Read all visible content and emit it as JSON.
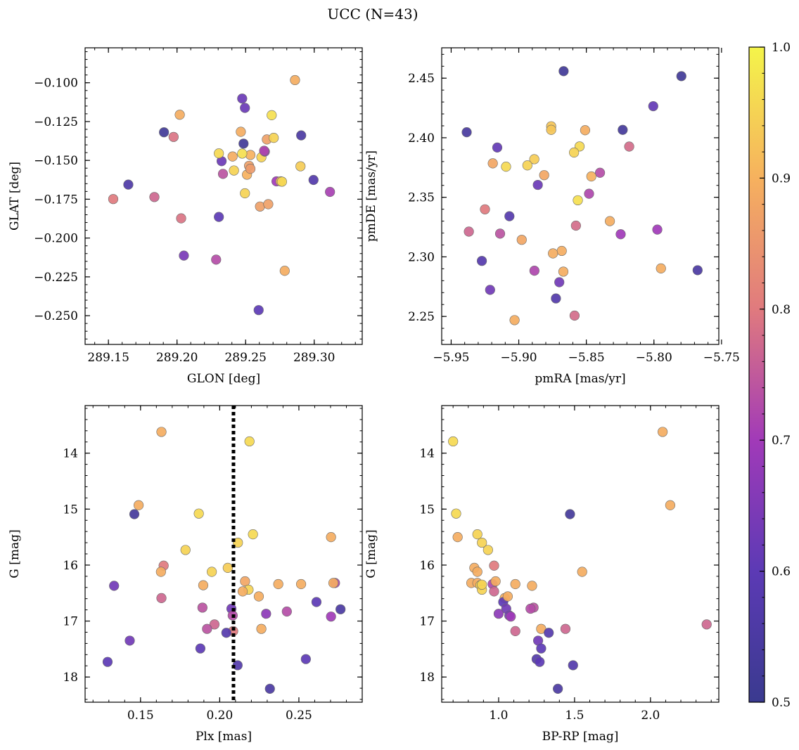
{
  "figure": {
    "title": "UCC (N=43)"
  },
  "colorbar": {
    "cmap": "plasma",
    "range": [
      0.5,
      1.0
    ],
    "ticks": [
      0.5,
      0.6,
      0.7,
      0.8,
      0.9,
      1.0
    ],
    "tick_labels": [
      "0.5",
      "0.6",
      "0.7",
      "0.8",
      "0.9",
      "1.0"
    ]
  },
  "chart_data": [
    {
      "type": "scatter",
      "id": "glon_glat",
      "xlabel": "GLON [deg]",
      "ylabel": "GLAT [deg]",
      "xlim": [
        289.133,
        289.335
      ],
      "ylim": [
        -0.2685,
        -0.0775
      ],
      "invert_y": false,
      "xticks": [
        289.15,
        289.2,
        289.25,
        289.3
      ],
      "xtick_labels": [
        "289.15",
        "289.20",
        "289.25",
        "289.30"
      ],
      "yticks": [
        -0.1,
        -0.125,
        -0.15,
        -0.175,
        -0.2,
        -0.225,
        -0.25
      ],
      "ytick_labels": [
        "−0.100",
        "−0.125",
        "−0.150",
        "−0.175",
        "−0.200",
        "−0.225",
        "−0.250"
      ],
      "x": [
        289.286,
        289.2475,
        289.2495,
        289.202,
        289.269,
        289.1905,
        289.1975,
        289.2465,
        289.2655,
        289.2705,
        289.2905,
        289.2485,
        289.2405,
        289.2535,
        289.2615,
        289.264,
        289.2325,
        289.2305,
        289.2525,
        289.2415,
        289.2335,
        289.251,
        289.2725,
        289.2755,
        289.2995,
        289.1645,
        289.3115,
        289.1835,
        289.1535,
        289.2495,
        289.2605,
        289.2665,
        289.203,
        289.2305,
        289.205,
        289.2285,
        289.2785,
        289.2595,
        289.2765,
        289.2475,
        289.2635,
        289.2535,
        289.29
      ],
      "y": [
        -0.0983,
        -0.1102,
        -0.1162,
        -0.1206,
        -0.1209,
        -0.1319,
        -0.1349,
        -0.1316,
        -0.1365,
        -0.1355,
        -0.1339,
        -0.1392,
        -0.1475,
        -0.1465,
        -0.148,
        -0.1443,
        -0.1505,
        -0.1455,
        -0.1535,
        -0.1565,
        -0.1587,
        -0.1592,
        -0.1635,
        -0.1635,
        -0.1626,
        -0.1656,
        -0.1703,
        -0.1736,
        -0.1749,
        -0.1712,
        -0.1797,
        -0.1782,
        -0.1873,
        -0.1864,
        -0.2113,
        -0.2139,
        -0.2211,
        -0.2464,
        -0.1637,
        -0.1456,
        -0.1438,
        -0.1554,
        -0.1538
      ],
      "c": [
        0.89,
        0.62,
        0.62,
        0.89,
        0.97,
        0.52,
        0.79,
        0.89,
        0.87,
        0.95,
        0.55,
        0.52,
        0.89,
        0.9,
        0.95,
        0.67,
        0.62,
        0.96,
        0.87,
        0.95,
        0.74,
        0.9,
        0.7,
        0.92,
        0.57,
        0.56,
        0.71,
        0.77,
        0.8,
        0.95,
        0.87,
        0.87,
        0.79,
        0.6,
        0.64,
        0.73,
        0.89,
        0.6,
        0.96,
        0.97,
        0.72,
        0.86,
        0.94
      ]
    },
    {
      "type": "scatter",
      "id": "pm",
      "xlabel": "pmRA [mas/yr]",
      "ylabel": "pmDE [mas/yr]",
      "xlim": [
        -5.957,
        -5.752
      ],
      "ylim": [
        2.2265,
        2.4755
      ],
      "invert_y": false,
      "xticks": [
        -5.95,
        -5.9,
        -5.85,
        -5.8,
        -5.75
      ],
      "xtick_labels": [
        "−5.95",
        "−5.90",
        "−5.85",
        "−5.80",
        "−5.75"
      ],
      "yticks": [
        2.25,
        2.3,
        2.35,
        2.4,
        2.45
      ],
      "ytick_labels": [
        "2.25",
        "2.30",
        "2.35",
        "2.40",
        "2.45"
      ],
      "x": [
        -5.8668,
        -5.7797,
        -5.8005,
        -5.8231,
        -5.9385,
        -5.876,
        -5.876,
        -5.8509,
        -5.855,
        -5.8183,
        -5.9159,
        -5.8591,
        -5.8885,
        -5.8936,
        -5.9192,
        -5.9094,
        -5.8399,
        -5.8812,
        -5.8463,
        -5.8859,
        -5.8563,
        -5.9069,
        -5.925,
        -5.8326,
        -5.9369,
        -5.9138,
        -5.8577,
        -5.7975,
        -5.8246,
        -5.8682,
        -5.8747,
        -5.8978,
        -5.9273,
        -5.7948,
        -5.867,
        -5.8884,
        -5.7677,
        -5.9212,
        -5.87,
        -5.8725,
        -5.9031,
        -5.8587,
        -5.848
      ],
      "y": [
        2.4559,
        2.4517,
        2.4265,
        2.4066,
        2.4046,
        2.4096,
        2.4066,
        2.4063,
        2.3927,
        2.3926,
        2.3918,
        2.3876,
        2.382,
        2.3768,
        2.3785,
        2.3757,
        2.3706,
        2.3686,
        2.3675,
        2.3604,
        2.3475,
        2.3341,
        2.3399,
        2.33,
        2.3212,
        2.3195,
        2.3262,
        2.3229,
        2.319,
        2.305,
        2.3029,
        2.3143,
        2.2966,
        2.2903,
        2.2876,
        2.2884,
        2.2888,
        2.2723,
        2.2787,
        2.2651,
        2.2469,
        2.2507,
        2.353
      ],
      "c": [
        0.52,
        0.52,
        0.61,
        0.53,
        0.54,
        0.93,
        0.93,
        0.89,
        0.96,
        0.78,
        0.61,
        0.95,
        0.94,
        0.95,
        0.88,
        0.96,
        0.73,
        0.88,
        0.9,
        0.62,
        0.97,
        0.58,
        0.8,
        0.89,
        0.77,
        0.74,
        0.78,
        0.7,
        0.7,
        0.89,
        0.89,
        0.88,
        0.58,
        0.89,
        0.89,
        0.72,
        0.55,
        0.63,
        0.63,
        0.57,
        0.89,
        0.78,
        0.72
      ]
    },
    {
      "type": "scatter",
      "id": "plx_g",
      "xlabel": "Plx [mas]",
      "ylabel": "G [mag]",
      "xlim": [
        0.115,
        0.29
      ],
      "ylim": [
        18.45,
        13.15
      ],
      "invert_y": true,
      "vline": {
        "x": 0.2087,
        "style": "dotted"
      },
      "xticks": [
        0.15,
        0.2,
        0.25
      ],
      "xtick_labels": [
        "0.15",
        "0.20",
        "0.25"
      ],
      "yticks": [
        14,
        15,
        16,
        17,
        18
      ],
      "ytick_labels": [
        "14",
        "15",
        "16",
        "17",
        "18"
      ],
      "x": [
        0.1632,
        0.2188,
        0.1488,
        0.1461,
        0.1868,
        0.221,
        0.2115,
        0.2703,
        0.1784,
        0.1646,
        0.1629,
        0.2051,
        0.195,
        0.216,
        0.2182,
        0.2728,
        0.2718,
        0.2514,
        0.237,
        0.1896,
        0.2145,
        0.2247,
        0.1333,
        0.1632,
        0.2611,
        0.1891,
        0.2074,
        0.2424,
        0.2293,
        0.2763,
        0.2703,
        0.1967,
        0.192,
        0.2263,
        0.2085,
        0.2042,
        0.2082,
        0.1432,
        0.1878,
        0.2113,
        0.1292,
        0.2544,
        0.2317
      ],
      "y": [
        13.62,
        13.79,
        14.93,
        15.09,
        15.08,
        15.45,
        15.6,
        15.5,
        15.73,
        16.01,
        16.12,
        16.05,
        16.12,
        16.29,
        16.44,
        16.32,
        16.32,
        16.34,
        16.34,
        16.36,
        16.47,
        16.56,
        16.37,
        16.59,
        16.66,
        16.76,
        16.78,
        16.83,
        16.87,
        16.79,
        16.92,
        17.06,
        17.14,
        17.14,
        17.18,
        17.21,
        16.9,
        17.35,
        17.49,
        17.79,
        17.73,
        17.68,
        18.21
      ],
      "c": [
        0.89,
        0.96,
        0.89,
        0.53,
        0.96,
        0.96,
        0.95,
        0.89,
        0.95,
        0.8,
        0.89,
        0.94,
        0.95,
        0.88,
        0.95,
        0.72,
        0.89,
        0.89,
        0.89,
        0.89,
        0.89,
        0.89,
        0.63,
        0.77,
        0.6,
        0.74,
        0.63,
        0.73,
        0.67,
        0.55,
        0.7,
        0.77,
        0.74,
        0.89,
        0.8,
        0.58,
        0.73,
        0.63,
        0.6,
        0.57,
        0.6,
        0.6,
        0.55
      ]
    },
    {
      "type": "scatter",
      "id": "bprp_g",
      "xlabel": "BP-RP [mag]",
      "ylabel": "G [mag]",
      "xlim": [
        0.625,
        2.45
      ],
      "ylim": [
        18.45,
        13.15
      ],
      "invert_y": true,
      "xticks": [
        1.0,
        1.5,
        2.0
      ],
      "xtick_labels": [
        "1.0",
        "1.5",
        "2.0"
      ],
      "yticks": [
        14,
        15,
        16,
        17,
        18
      ],
      "ytick_labels": [
        "14",
        "15",
        "16",
        "17",
        "18"
      ],
      "x": [
        0.7,
        2.08,
        2.13,
        0.72,
        0.73,
        1.47,
        0.86,
        0.89,
        0.93,
        0.97,
        1.55,
        0.84,
        0.86,
        0.82,
        0.86,
        0.88,
        0.89,
        0.96,
        0.98,
        1.11,
        1.22,
        0.97,
        0.89,
        1.04,
        1.03,
        1.06,
        1.23,
        1.05,
        1.21,
        1.0,
        1.07,
        1.08,
        1.28,
        1.44,
        2.37,
        1.11,
        1.33,
        1.26,
        1.28,
        1.25,
        1.27,
        1.49,
        1.39
      ],
      "y": [
        13.79,
        13.62,
        14.93,
        15.08,
        15.5,
        15.09,
        15.45,
        15.6,
        15.73,
        16.01,
        16.12,
        16.05,
        16.12,
        16.32,
        16.32,
        16.36,
        16.44,
        16.34,
        16.29,
        16.34,
        16.37,
        16.47,
        16.35,
        16.59,
        16.66,
        16.56,
        16.76,
        16.78,
        16.78,
        16.87,
        16.9,
        16.92,
        17.14,
        17.14,
        17.06,
        17.18,
        17.21,
        17.35,
        17.49,
        17.68,
        17.73,
        17.79,
        18.21
      ],
      "c": [
        0.96,
        0.89,
        0.89,
        0.96,
        0.89,
        0.53,
        0.95,
        0.95,
        0.95,
        0.8,
        0.89,
        0.89,
        0.89,
        0.89,
        0.89,
        0.95,
        0.95,
        0.72,
        0.89,
        0.89,
        0.89,
        0.77,
        0.95,
        0.89,
        0.6,
        0.89,
        0.74,
        0.63,
        0.73,
        0.67,
        0.63,
        0.7,
        0.89,
        0.77,
        0.77,
        0.77,
        0.58,
        0.63,
        0.6,
        0.57,
        0.6,
        0.57,
        0.55
      ]
    }
  ]
}
